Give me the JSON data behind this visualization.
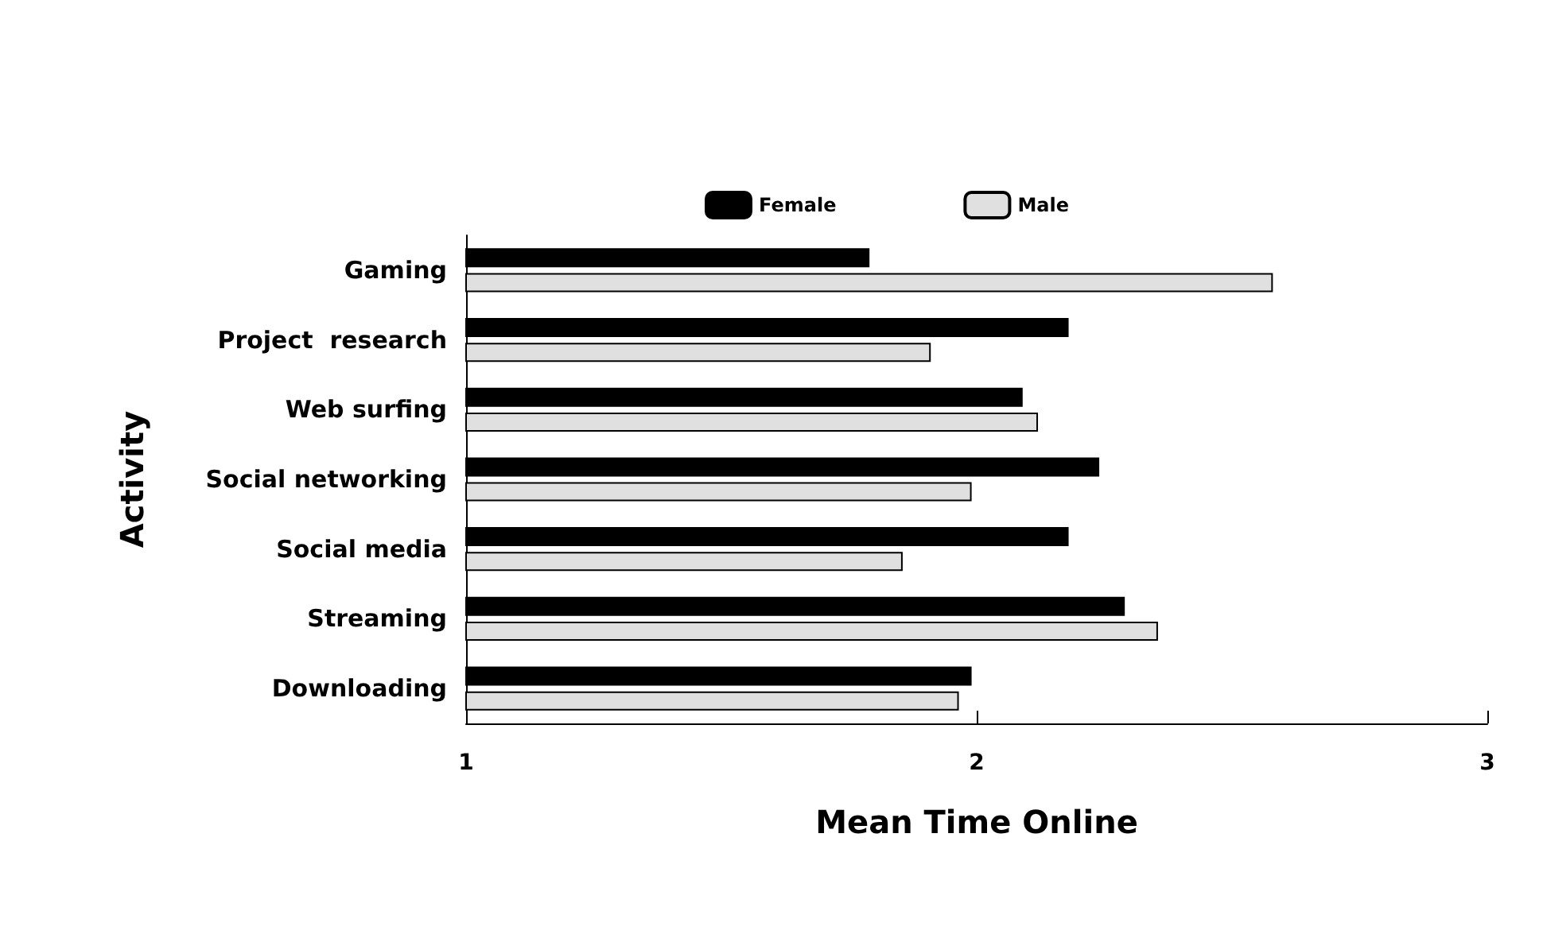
{
  "chart_data": {
    "type": "bar",
    "orientation": "horizontal",
    "xlabel": "Mean Time Online",
    "ylabel": "Activity",
    "categories": [
      "Gaming",
      "Project  research",
      "Web surfing",
      "Social networking",
      "Social media",
      "Streaming",
      "Downloading"
    ],
    "series": [
      {
        "name": "Female",
        "color": "#000000",
        "values": [
          1.79,
          2.18,
          2.09,
          2.24,
          2.18,
          2.29,
          1.99
        ]
      },
      {
        "name": "Male",
        "color": "#e0e0e0",
        "values": [
          2.58,
          1.91,
          2.12,
          1.99,
          1.855,
          2.355,
          1.965
        ]
      }
    ],
    "xlim": [
      1,
      3
    ],
    "xticks": [
      1,
      2,
      3
    ],
    "grid": false,
    "legend": "top"
  }
}
